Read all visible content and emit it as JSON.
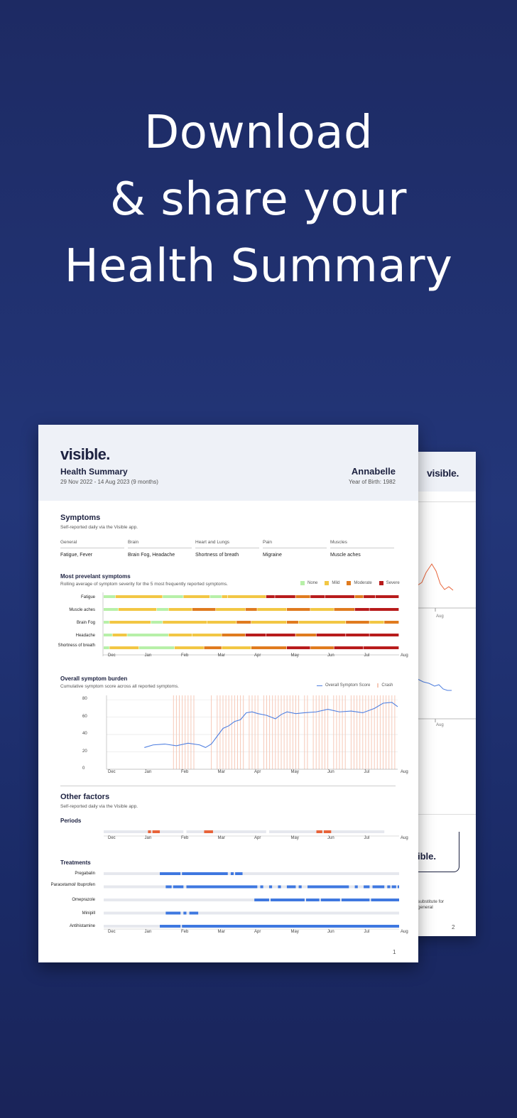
{
  "headline": [
    "Download",
    "& share your",
    "Health Summary"
  ],
  "page1": {
    "logo": "visible.",
    "title": "Health Summary",
    "date_range": "29 Nov 2022 - 14 Aug 2023 (9 months)",
    "patient_name": "Annabelle",
    "year_of_birth": "Year of Birth: 1982",
    "page_number": "1",
    "symptoms": {
      "title": "Symptoms",
      "subtitle": "Self-reported daily via the Visible app.",
      "categories": [
        {
          "name": "General",
          "value": "Fatigue, Fever"
        },
        {
          "name": "Brain",
          "value": "Brain Fog, Headache"
        },
        {
          "name": "Heart and Lungs",
          "value": "Shortness of breath"
        },
        {
          "name": "Pain",
          "value": "Migraine"
        },
        {
          "name": "Muscles",
          "value": "Muscle aches"
        }
      ]
    },
    "other_factors": {
      "title": "Other factors",
      "subtitle": "Self-reported daily via the Visible app.",
      "periods_title": "Periods",
      "treatments_title": "Treatments"
    }
  },
  "page2": {
    "logo": "visible.",
    "tick_aug": "Aug",
    "card_logo": "ible.",
    "disclaimer_line1": "substitute for",
    "disclaimer_line2": "general",
    "page_number": "2"
  },
  "colors": {
    "none": "#b7f0a8",
    "mild": "#f2c744",
    "moderate": "#e07b1f",
    "severe": "#b81c1c",
    "line": "#4f7fe0",
    "crash": "#f6c9b8",
    "bar": "#3f78e0",
    "period": "#e8643a",
    "track": "#e6e8ee"
  },
  "chart_data": [
    {
      "type": "heatmap",
      "title": "Most prevelant symptoms",
      "subtitle": "Rolling average of symptom severity for the 5 most frequently reported symptoms.",
      "legend": [
        "None",
        "Mild",
        "Moderate",
        "Severe"
      ],
      "x_ticks": [
        "Dec",
        "Jan",
        "Feb",
        "Mar",
        "Apr",
        "May",
        "Jun",
        "Jul",
        "Aug"
      ],
      "rows": [
        {
          "name": "Fatigue",
          "segments": [
            [
              0,
              0.04,
              0
            ],
            [
              0.04,
              0.2,
              1
            ],
            [
              0.2,
              0.27,
              0
            ],
            [
              0.27,
              0.36,
              1
            ],
            [
              0.36,
              0.4,
              0
            ],
            [
              0.4,
              0.42,
              1
            ],
            [
              0.42,
              0.55,
              1
            ],
            [
              0.55,
              0.58,
              3
            ],
            [
              0.58,
              0.65,
              3
            ],
            [
              0.65,
              0.7,
              2
            ],
            [
              0.7,
              0.75,
              3
            ],
            [
              0.75,
              0.85,
              3
            ],
            [
              0.85,
              0.88,
              2
            ],
            [
              0.88,
              0.92,
              3
            ],
            [
              0.92,
              1,
              3
            ]
          ]
        },
        {
          "name": "Muscle aches",
          "segments": [
            [
              0,
              0.05,
              0
            ],
            [
              0.05,
              0.18,
              1
            ],
            [
              0.18,
              0.22,
              0
            ],
            [
              0.22,
              0.3,
              1
            ],
            [
              0.3,
              0.38,
              2
            ],
            [
              0.38,
              0.48,
              1
            ],
            [
              0.48,
              0.52,
              2
            ],
            [
              0.52,
              0.62,
              1
            ],
            [
              0.62,
              0.7,
              2
            ],
            [
              0.7,
              0.78,
              1
            ],
            [
              0.78,
              0.85,
              2
            ],
            [
              0.85,
              0.9,
              3
            ],
            [
              0.9,
              1,
              3
            ]
          ]
        },
        {
          "name": "Brain Fog",
          "segments": [
            [
              0,
              0.02,
              0
            ],
            [
              0.02,
              0.16,
              1
            ],
            [
              0.16,
              0.2,
              0
            ],
            [
              0.2,
              0.35,
              1
            ],
            [
              0.35,
              0.45,
              1
            ],
            [
              0.45,
              0.5,
              2
            ],
            [
              0.5,
              0.62,
              1
            ],
            [
              0.62,
              0.66,
              2
            ],
            [
              0.66,
              0.82,
              1
            ],
            [
              0.82,
              0.9,
              2
            ],
            [
              0.9,
              0.95,
              1
            ],
            [
              0.95,
              1,
              2
            ]
          ]
        },
        {
          "name": "Headache",
          "segments": [
            [
              0,
              0.03,
              0
            ],
            [
              0.03,
              0.08,
              1
            ],
            [
              0.08,
              0.22,
              0
            ],
            [
              0.22,
              0.3,
              1
            ],
            [
              0.3,
              0.4,
              1
            ],
            [
              0.4,
              0.48,
              2
            ],
            [
              0.48,
              0.55,
              3
            ],
            [
              0.55,
              0.65,
              3
            ],
            [
              0.65,
              0.72,
              2
            ],
            [
              0.72,
              0.82,
              3
            ],
            [
              0.82,
              0.9,
              3
            ],
            [
              0.9,
              1,
              3
            ]
          ]
        },
        {
          "name": "Shortness of breath",
          "segments": [
            [
              0,
              0.02,
              0
            ],
            [
              0.02,
              0.12,
              1
            ],
            [
              0.12,
              0.24,
              0
            ],
            [
              0.24,
              0.34,
              1
            ],
            [
              0.34,
              0.4,
              2
            ],
            [
              0.4,
              0.5,
              1
            ],
            [
              0.5,
              0.62,
              2
            ],
            [
              0.62,
              0.7,
              3
            ],
            [
              0.7,
              0.78,
              2
            ],
            [
              0.78,
              0.88,
              3
            ],
            [
              0.88,
              1,
              3
            ]
          ]
        }
      ]
    },
    {
      "type": "line",
      "title": "Overall symptom burden",
      "subtitle": "Cumulative symptom score across all reported symptoms.",
      "legend": [
        "Overall Symptom Score",
        "Crash"
      ],
      "x_ticks": [
        "Dec",
        "Jan",
        "Feb",
        "Mar",
        "Apr",
        "May",
        "Jun",
        "Jul",
        "Aug"
      ],
      "y_ticks": [
        0,
        20,
        40,
        60,
        80
      ],
      "ylim": [
        0,
        85
      ],
      "x": [
        0.13,
        0.16,
        0.2,
        0.24,
        0.28,
        0.32,
        0.34,
        0.36,
        0.38,
        0.4,
        0.42,
        0.44,
        0.46,
        0.48,
        0.5,
        0.52,
        0.55,
        0.58,
        0.6,
        0.62,
        0.65,
        0.68,
        0.72,
        0.76,
        0.8,
        0.84,
        0.88,
        0.92,
        0.95,
        0.98,
        1.0
      ],
      "y": [
        25,
        28,
        29,
        27,
        30,
        28,
        25,
        29,
        38,
        47,
        50,
        55,
        57,
        65,
        66,
        64,
        62,
        58,
        63,
        66,
        64,
        65,
        66,
        69,
        66,
        67,
        65,
        70,
        76,
        77,
        72
      ],
      "crash_x": [
        0.23,
        0.24,
        0.25,
        0.26,
        0.27,
        0.28,
        0.29,
        0.3,
        0.36,
        0.38,
        0.39,
        0.4,
        0.41,
        0.42,
        0.43,
        0.44,
        0.45,
        0.46,
        0.47,
        0.49,
        0.5,
        0.51,
        0.52,
        0.54,
        0.55,
        0.56,
        0.57,
        0.58,
        0.59,
        0.6,
        0.61,
        0.62,
        0.63,
        0.64,
        0.65,
        0.66,
        0.68,
        0.69,
        0.71,
        0.72,
        0.73,
        0.74,
        0.75,
        0.76,
        0.78,
        0.79,
        0.8,
        0.81,
        0.82,
        0.84,
        0.85,
        0.86,
        0.87,
        0.88,
        0.89,
        0.9,
        0.91,
        0.92,
        0.93,
        0.94,
        0.95,
        0.96,
        0.97,
        0.98,
        0.99
      ]
    },
    {
      "type": "bar",
      "title": "Periods",
      "x_ticks": [
        "Dec",
        "Jan",
        "Feb",
        "Mar",
        "Apr",
        "May",
        "Jun",
        "Jul",
        "Aug"
      ],
      "track_segments": [
        [
          0,
          0.27
        ],
        [
          0.28,
          0.55
        ],
        [
          0.56,
          0.95
        ]
      ],
      "period_segments": [
        [
          0.15,
          0.16
        ],
        [
          0.165,
          0.19
        ],
        [
          0.34,
          0.37
        ],
        [
          0.72,
          0.74
        ],
        [
          0.745,
          0.77
        ]
      ]
    },
    {
      "type": "bar",
      "title": "Treatments",
      "x_ticks": [
        "Dec",
        "Jan",
        "Feb",
        "Mar",
        "Apr",
        "May",
        "Jun",
        "Jul",
        "Aug"
      ],
      "rows": [
        {
          "name": "Pregabalin",
          "segments": [
            [
              0.19,
              0.26
            ],
            [
              0.265,
              0.42
            ],
            [
              0.43,
              0.44
            ],
            [
              0.445,
              0.47
            ]
          ]
        },
        {
          "name": "Paracetamol/ Ibuprofen",
          "segments": [
            [
              0.21,
              0.23
            ],
            [
              0.235,
              0.27
            ],
            [
              0.28,
              0.52
            ],
            [
              0.53,
              0.54
            ],
            [
              0.56,
              0.57
            ],
            [
              0.59,
              0.6
            ],
            [
              0.62,
              0.65
            ],
            [
              0.66,
              0.67
            ],
            [
              0.69,
              0.83
            ],
            [
              0.85,
              0.86
            ],
            [
              0.88,
              0.9
            ],
            [
              0.91,
              0.95
            ],
            [
              0.96,
              0.97
            ],
            [
              0.975,
              0.99
            ],
            [
              0.995,
              1.0
            ]
          ]
        },
        {
          "name": "Omeprazole",
          "segments": [
            [
              0.51,
              0.56
            ],
            [
              0.565,
              0.68
            ],
            [
              0.685,
              0.73
            ],
            [
              0.735,
              0.8
            ],
            [
              0.805,
              0.9
            ],
            [
              0.905,
              1.0
            ]
          ]
        },
        {
          "name": "Minipill",
          "segments": [
            [
              0.21,
              0.26
            ],
            [
              0.27,
              0.28
            ],
            [
              0.29,
              0.32
            ]
          ]
        },
        {
          "name": "Antihistamine",
          "segments": [
            [
              0.19,
              0.26
            ],
            [
              0.265,
              1.0
            ]
          ]
        }
      ]
    }
  ]
}
